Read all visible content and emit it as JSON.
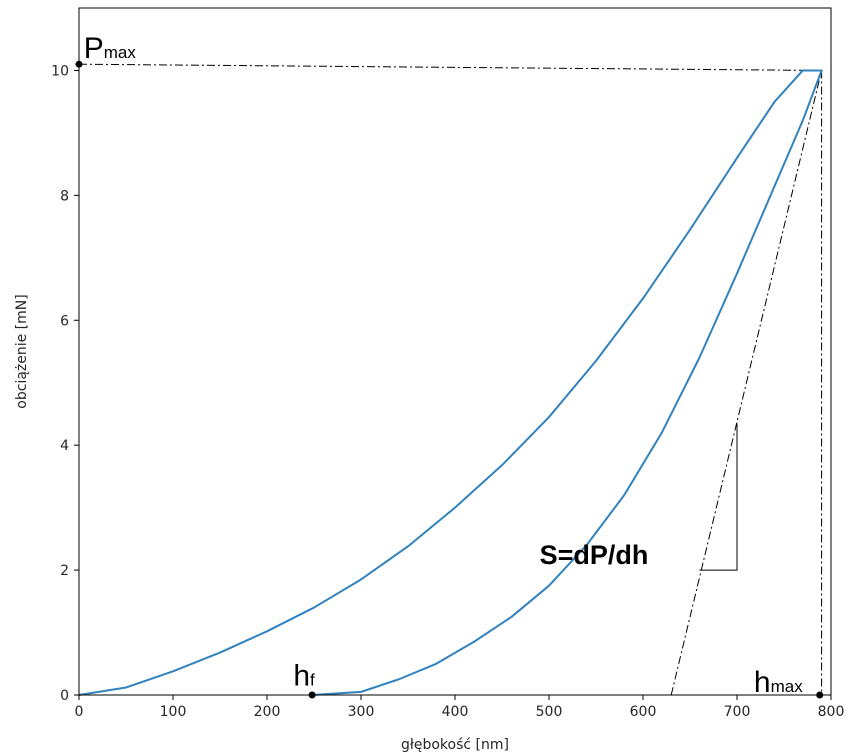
{
  "chart_data": {
    "type": "line",
    "xlabel": "głębokość [nm]",
    "ylabel": "obciążenie [mN]",
    "xlim": [
      0,
      800
    ],
    "ylim": [
      0,
      11
    ],
    "x_ticks": [
      0,
      100,
      200,
      300,
      400,
      500,
      600,
      700,
      800
    ],
    "y_ticks": [
      0,
      2,
      4,
      6,
      8,
      10
    ],
    "grid": false,
    "legend": "none",
    "line_color": "#3182bd",
    "series": [
      {
        "x": [
          0,
          50,
          100,
          150,
          200,
          250,
          300,
          350,
          400,
          450,
          500,
          550,
          600,
          650,
          700,
          740,
          770,
          790
        ],
        "y": [
          0,
          0.12,
          0.38,
          0.68,
          1.02,
          1.4,
          1.85,
          2.38,
          3.0,
          3.68,
          4.45,
          5.35,
          6.35,
          7.45,
          8.6,
          9.5,
          10.0,
          10.0
        ]
      },
      {
        "x": [
          248,
          300,
          340,
          380,
          420,
          460,
          500,
          540,
          580,
          620,
          660,
          700,
          740,
          770,
          790
        ],
        "y": [
          0,
          0.05,
          0.25,
          0.5,
          0.85,
          1.25,
          1.75,
          2.4,
          3.2,
          4.2,
          5.4,
          6.75,
          8.15,
          9.2,
          10.0
        ]
      }
    ],
    "reference_lines": {
      "pmax_line": {
        "x": [
          0,
          790
        ],
        "y": [
          10.1,
          10.0
        ]
      },
      "hmax_line": {
        "x": [
          790,
          790
        ],
        "y": [
          10.0,
          0
        ]
      },
      "tangent_line": {
        "x": [
          630,
          790
        ],
        "y": [
          0,
          10.0
        ]
      },
      "slope_triangle": {
        "x": [
          660,
          700,
          700
        ],
        "y": [
          2.0,
          2.0,
          4.35
        ]
      }
    },
    "markers": [
      {
        "x": 0,
        "y": 10.1
      },
      {
        "x": 248,
        "y": 0
      },
      {
        "x": 788,
        "y": 0
      }
    ],
    "annotations": {
      "pmax": {
        "main": "P",
        "sub": "max",
        "x": 5,
        "y": 10.2
      },
      "hf": {
        "main": "h",
        "sub": "f",
        "x": 228,
        "y": 0.15
      },
      "hmax": {
        "main": "h",
        "sub": "max",
        "x": 718,
        "y": 0.05
      },
      "stiffness": {
        "text": "S=dP/dh",
        "x": 490,
        "y": 2.1
      }
    }
  }
}
